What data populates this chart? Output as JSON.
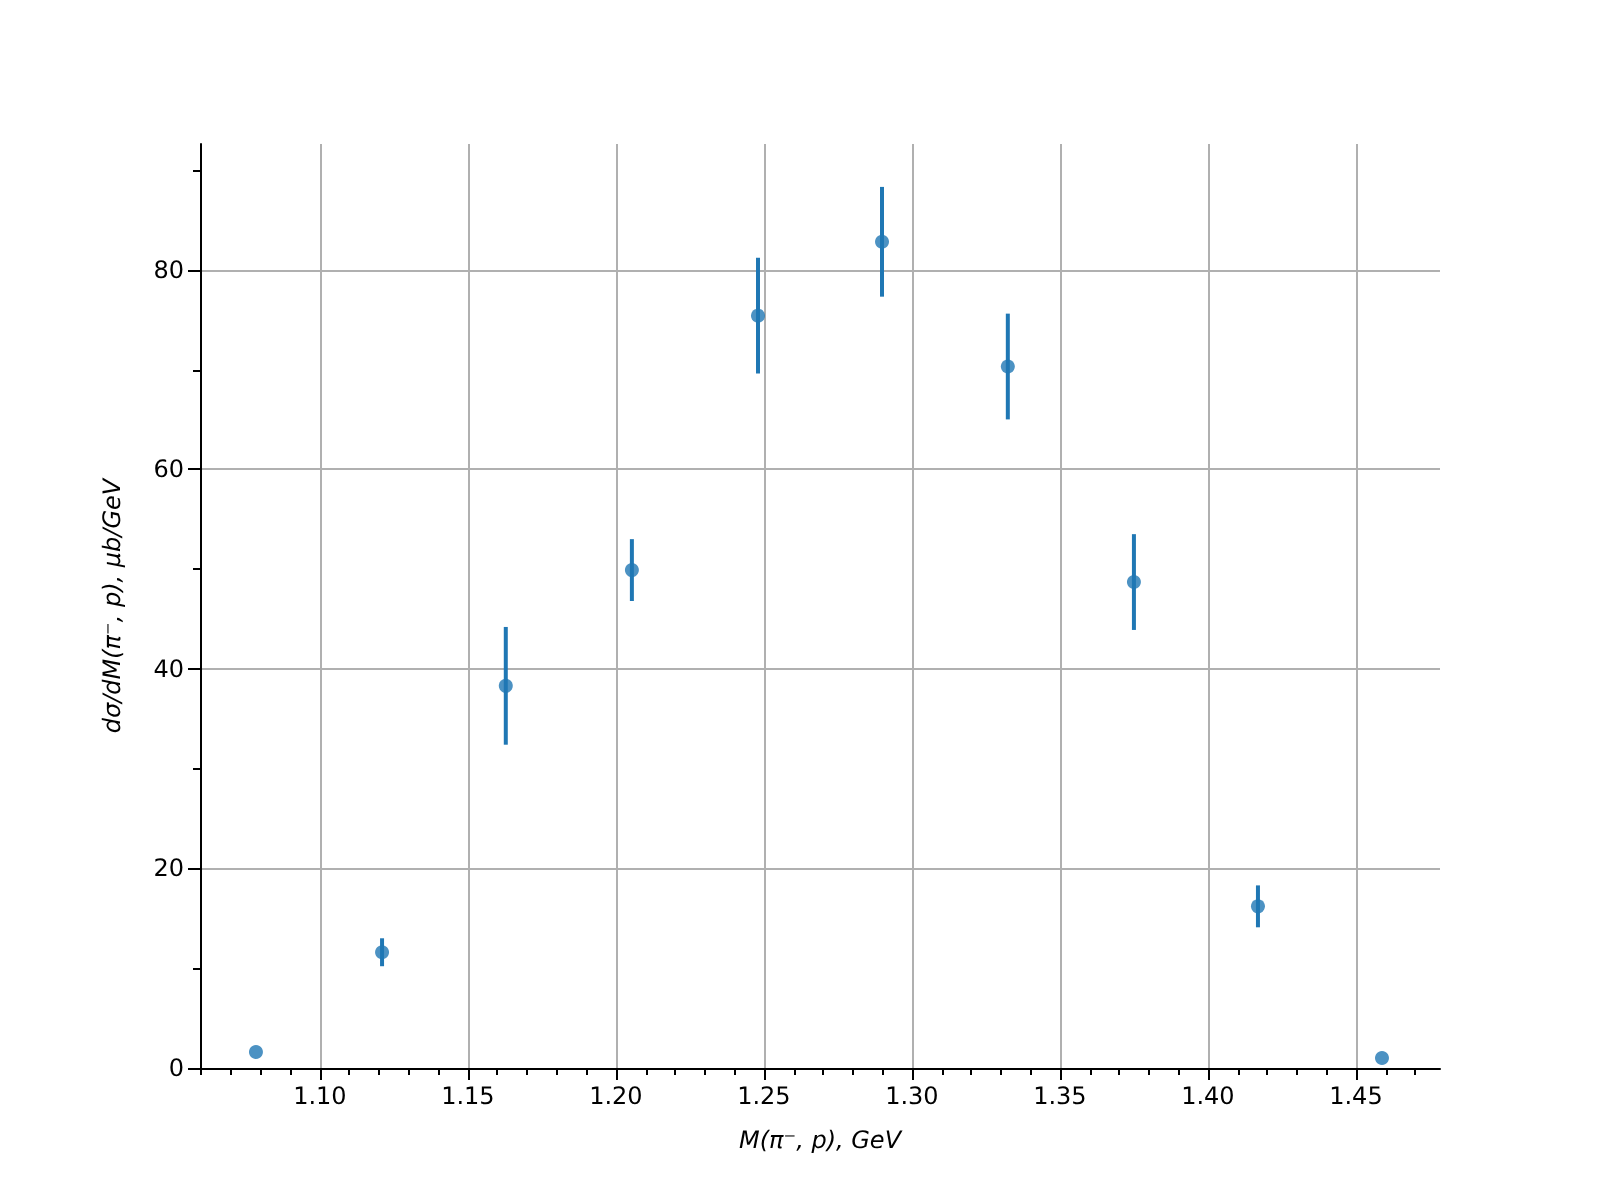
{
  "chart_data": {
    "type": "scatter",
    "xlabel": "M(π⁻, p), GeV",
    "ylabel": "dσ/dM(π⁻, p), μb/GeV",
    "x": [
      1.0784,
      1.121,
      1.1628,
      1.2054,
      1.248,
      1.2899,
      1.3324,
      1.375,
      1.4169,
      1.4588
    ],
    "series": [
      {
        "color": "#1f77b4",
        "values": [
          1.6,
          11.6,
          38.3,
          49.9,
          75.4,
          82.8,
          70.3,
          48.7,
          16.2,
          1.0
        ],
        "errors": [
          null,
          1.4,
          5.9,
          3.1,
          5.8,
          5.5,
          5.3,
          4.8,
          2.1,
          null
        ]
      }
    ],
    "xlim": [
      1.0595,
      1.4784
    ],
    "ylim": [
      0,
      92.6
    ],
    "xticks": [
      {
        "value": 1.06,
        "label": null
      },
      {
        "value": 1.07,
        "label": null
      },
      {
        "value": 1.08,
        "label": null
      },
      {
        "value": 1.09,
        "label": null
      },
      {
        "value": 1.1,
        "label": "1.10"
      },
      {
        "value": 1.11,
        "label": null
      },
      {
        "value": 1.12,
        "label": null
      },
      {
        "value": 1.13,
        "label": null
      },
      {
        "value": 1.14,
        "label": null
      },
      {
        "value": 1.15,
        "label": "1.15"
      },
      {
        "value": 1.16,
        "label": null
      },
      {
        "value": 1.17,
        "label": null
      },
      {
        "value": 1.18,
        "label": null
      },
      {
        "value": 1.19,
        "label": null
      },
      {
        "value": 1.2,
        "label": "1.20"
      },
      {
        "value": 1.21,
        "label": null
      },
      {
        "value": 1.22,
        "label": null
      },
      {
        "value": 1.23,
        "label": null
      },
      {
        "value": 1.24,
        "label": null
      },
      {
        "value": 1.25,
        "label": "1.25"
      },
      {
        "value": 1.26,
        "label": null
      },
      {
        "value": 1.27,
        "label": null
      },
      {
        "value": 1.28,
        "label": null
      },
      {
        "value": 1.29,
        "label": null
      },
      {
        "value": 1.3,
        "label": "1.30"
      },
      {
        "value": 1.31,
        "label": null
      },
      {
        "value": 1.32,
        "label": null
      },
      {
        "value": 1.33,
        "label": null
      },
      {
        "value": 1.34,
        "label": null
      },
      {
        "value": 1.35,
        "label": "1.35"
      },
      {
        "value": 1.36,
        "label": null
      },
      {
        "value": 1.37,
        "label": null
      },
      {
        "value": 1.38,
        "label": null
      },
      {
        "value": 1.39,
        "label": null
      },
      {
        "value": 1.4,
        "label": "1.40"
      },
      {
        "value": 1.41,
        "label": null
      },
      {
        "value": 1.42,
        "label": null
      },
      {
        "value": 1.43,
        "label": null
      },
      {
        "value": 1.44,
        "label": null
      },
      {
        "value": 1.45,
        "label": "1.45"
      },
      {
        "value": 1.46,
        "label": null
      },
      {
        "value": 1.47,
        "label": null
      }
    ],
    "yticks": [
      0,
      {
        "value": 10,
        "label": null
      },
      20,
      {
        "value": 30,
        "label": null
      },
      40,
      {
        "value": 50,
        "label": null
      },
      60,
      {
        "value": 70,
        "label": null
      },
      80,
      {
        "value": 90,
        "label": null
      }
    ],
    "grid": true,
    "marker": "circle"
  }
}
